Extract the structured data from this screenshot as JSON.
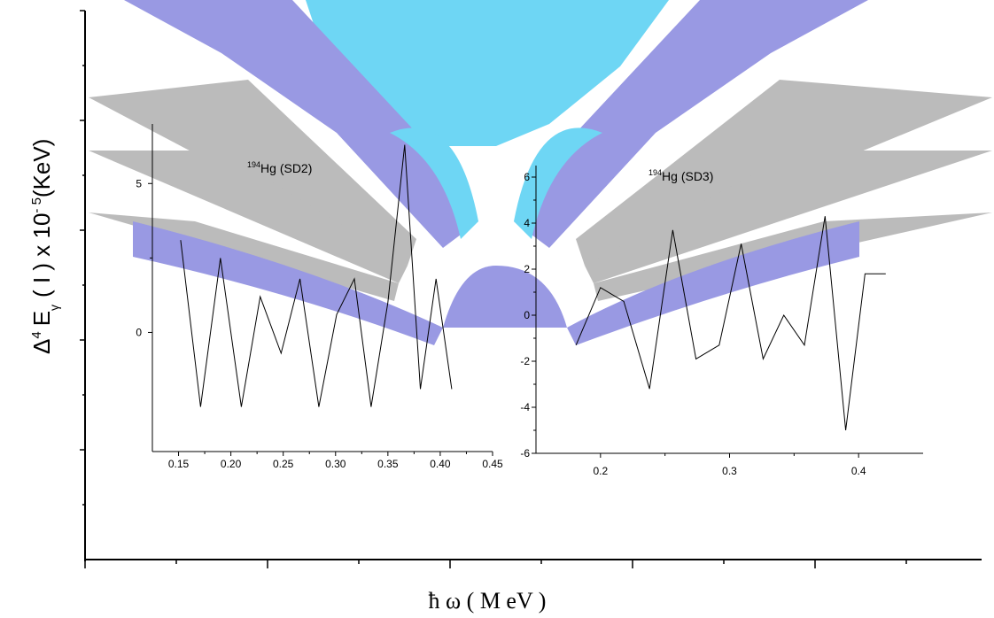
{
  "watermark": {
    "colors": {
      "cyan": "#5fd2f3",
      "lavender": "#8f8fe0",
      "gray": "#b4b4b4"
    }
  },
  "outer_axes": {
    "ylabel": {
      "delta": "Δ",
      "four": "4",
      "E": "E",
      "gamma": "γ",
      "rest": "( I ) x 10",
      "exp": "- 5",
      "unit": "(KeV)"
    },
    "xlabel": "ħ ω ( M eV )"
  },
  "chart_data": [
    {
      "type": "line",
      "title": "194Hg (SD2)",
      "title_sup": "194",
      "title_main": "Hg (SD2)",
      "xlabel": "",
      "ylabel": "",
      "xlim": [
        0.125,
        0.45
      ],
      "ylim": [
        -4,
        7
      ],
      "xticks": [
        "0.15",
        "0.20",
        "0.25",
        "0.30",
        "0.35",
        "0.40",
        "0.45"
      ],
      "xtick_values": [
        0.15,
        0.2,
        0.25,
        0.3,
        0.35,
        0.4,
        0.45
      ],
      "yticks": [
        "0",
        "5"
      ],
      "ytick_values": [
        0,
        5
      ],
      "grid": false,
      "series": [
        {
          "x": [
            0.152,
            0.171,
            0.19,
            0.21,
            0.228,
            0.248,
            0.266,
            0.284,
            0.301,
            0.318,
            0.334,
            0.35,
            0.366,
            0.381,
            0.396,
            0.411
          ],
          "y": [
            3.1,
            -2.5,
            2.5,
            -2.5,
            1.2,
            -0.7,
            1.8,
            -2.5,
            0.6,
            1.8,
            -2.5,
            1.0,
            6.3,
            -1.9,
            1.8,
            -1.9
          ]
        }
      ]
    },
    {
      "type": "line",
      "title": "194Hg (SD3)",
      "title_sup": "194",
      "title_main": "Hg (SD3)",
      "xlabel": "",
      "ylabel": "",
      "xlim": [
        0.15,
        0.45
      ],
      "ylim": [
        -6,
        6.5
      ],
      "xticks": [
        "0.2",
        "0.3",
        "0.4"
      ],
      "xtick_values": [
        0.2,
        0.3,
        0.4
      ],
      "yticks": [
        "-6",
        "-4",
        "-2",
        "0",
        "2",
        "4",
        "6"
      ],
      "ytick_values": [
        -6,
        -4,
        -2,
        0,
        2,
        4,
        6
      ],
      "grid": false,
      "series": [
        {
          "x": [
            0.181,
            0.2,
            0.218,
            0.238,
            0.256,
            0.274,
            0.292,
            0.309,
            0.326,
            0.342,
            0.358,
            0.374,
            0.39,
            0.405,
            0.421
          ],
          "y": [
            -1.3,
            1.2,
            0.6,
            -3.2,
            3.7,
            -1.9,
            -1.3,
            3.1,
            -1.9,
            0.0,
            -1.3,
            4.3,
            -5.0,
            1.8,
            1.8
          ]
        }
      ]
    }
  ]
}
